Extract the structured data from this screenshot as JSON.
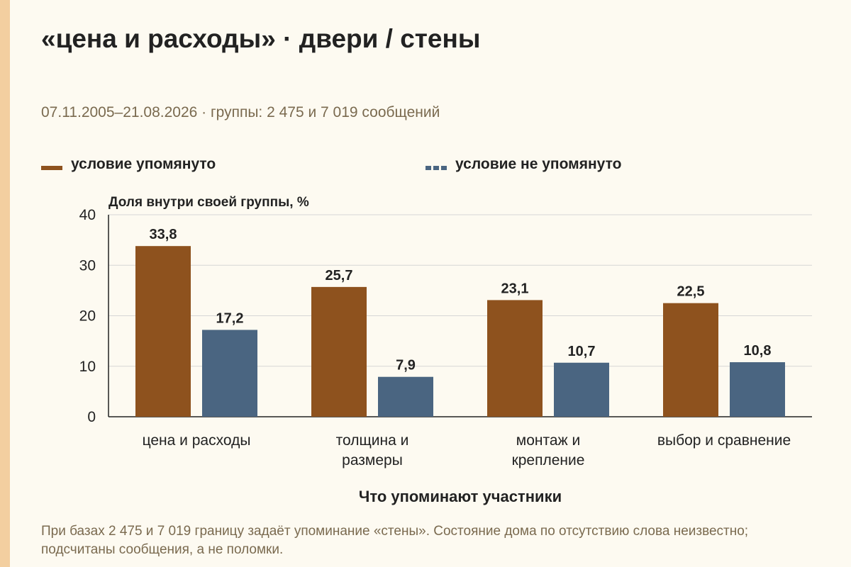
{
  "title": "«цена и расходы» · двери / стены",
  "subtitle": "07.11.2005–21.08.2026 · группы: 2 475 и 7 019 сообщений",
  "footnote": "При базах 2 475 и 7 019 границу задаёт упоминание «стены». Состояние дома по отсутствию слова неизвестно; подсчитаны сообщения, а не поломки.",
  "colors": {
    "series1": "#8e521e",
    "series2": "#4a6581",
    "grid": "#d6d6d6",
    "axis": "#222222",
    "background": "#fdfaf1",
    "accent_strip": "#f3cfa0"
  },
  "chart_data": {
    "type": "bar",
    "ylabel": "Доля внутри своей группы, %",
    "xlabel": "Что упоминают участники",
    "ylim": [
      0,
      40
    ],
    "yticks": [
      "0",
      "10",
      "20",
      "30",
      "40"
    ],
    "grid": true,
    "legend_position": "top",
    "categories": [
      [
        "цена и расходы"
      ],
      [
        "толщина и",
        "размеры"
      ],
      [
        "монтаж и",
        "крепление"
      ],
      [
        "выбор и сравнение"
      ]
    ],
    "series": [
      {
        "name": "условие упомянуто",
        "values": [
          33.8,
          25.7,
          23.1,
          22.5
        ],
        "labels": [
          "33,8",
          "25,7",
          "23,1",
          "22,5"
        ]
      },
      {
        "name": "условие не упомянуто",
        "values": [
          17.2,
          7.9,
          10.7,
          10.8
        ],
        "labels": [
          "17,2",
          "7,9",
          "10,7",
          "10,8"
        ]
      }
    ]
  }
}
